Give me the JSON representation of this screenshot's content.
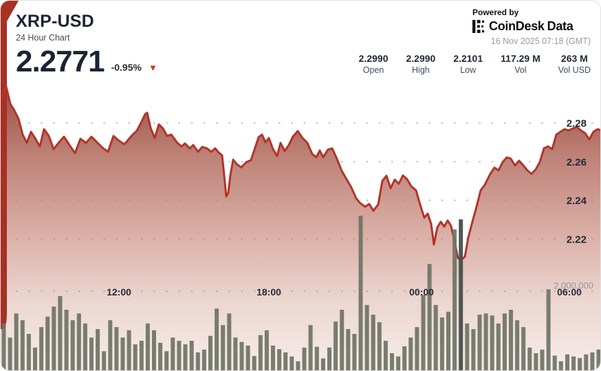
{
  "header": {
    "symbol": "XRP-USD",
    "subtitle": "24 Hour Chart",
    "price": "2.2771",
    "change_pct": "-0.95%",
    "down_arrow": "▼",
    "powered_by": "Powered by",
    "brand_1": "CoinDesk",
    "brand_2": "Data",
    "timestamp": "16 Nov 2025 07:18 (GMT)"
  },
  "stats": [
    {
      "value": "2.2990",
      "label": "Open"
    },
    {
      "value": "2.2990",
      "label": "High"
    },
    {
      "value": "2.2101",
      "label": "Low"
    },
    {
      "value": "117.29 M",
      "label": "Vol"
    },
    {
      "value": "263 M",
      "label": "Vol USD"
    }
  ],
  "chart_data": {
    "type": "area",
    "title": "XRP-USD 24 Hour Chart",
    "x_ticks": [
      "12:00",
      "18:00",
      "00:00",
      "06:00"
    ],
    "y_ticks": [
      "2.28",
      "2.26",
      "2.24",
      "2.22"
    ],
    "y_tick_prices": [
      2.28,
      2.26,
      2.24,
      2.22
    ],
    "volume_axis_label": "2,000,000",
    "volume_axis_value_millions": 2.0,
    "open": 2.299,
    "high": 2.299,
    "low": 2.2101,
    "last": 2.2771,
    "x_unit": "pixel position across 24h window (0-874)",
    "price_series": [
      [
        0,
        2.2914
      ],
      [
        8,
        2.2988
      ],
      [
        14,
        2.2899
      ],
      [
        20,
        2.2864
      ],
      [
        26,
        2.2821
      ],
      [
        32,
        2.274
      ],
      [
        38,
        2.2697
      ],
      [
        44,
        2.2754
      ],
      [
        50,
        2.2722
      ],
      [
        57,
        2.2679
      ],
      [
        63,
        2.2768
      ],
      [
        70,
        2.2733
      ],
      [
        77,
        2.2665
      ],
      [
        85,
        2.2701
      ],
      [
        92,
        2.2729
      ],
      [
        100,
        2.2686
      ],
      [
        108,
        2.2644
      ],
      [
        116,
        2.2718
      ],
      [
        124,
        2.2697
      ],
      [
        132,
        2.2729
      ],
      [
        140,
        2.2701
      ],
      [
        148,
        2.2672
      ],
      [
        156,
        2.2651
      ],
      [
        164,
        2.2733
      ],
      [
        172,
        2.2708
      ],
      [
        180,
        2.269
      ],
      [
        186,
        2.2715
      ],
      [
        192,
        2.274
      ],
      [
        198,
        2.276
      ],
      [
        204,
        2.28
      ],
      [
        210,
        2.2845
      ],
      [
        213,
        2.2853
      ],
      [
        218,
        2.2775
      ],
      [
        224,
        2.2722
      ],
      [
        230,
        2.2793
      ],
      [
        236,
        2.2772
      ],
      [
        242,
        2.2733
      ],
      [
        248,
        2.274
      ],
      [
        257,
        2.2697
      ],
      [
        263,
        2.2679
      ],
      [
        268,
        2.2694
      ],
      [
        275,
        2.2669
      ],
      [
        280,
        2.2686
      ],
      [
        287,
        2.2651
      ],
      [
        293,
        2.2676
      ],
      [
        300,
        2.2669
      ],
      [
        306,
        2.2651
      ],
      [
        312,
        2.2669
      ],
      [
        317,
        2.2647
      ],
      [
        322,
        2.2633
      ],
      [
        325,
        2.253
      ],
      [
        328,
        2.242
      ],
      [
        331,
        2.244
      ],
      [
        334,
        2.253
      ],
      [
        338,
        2.261
      ],
      [
        344,
        2.2585
      ],
      [
        350,
        2.257
      ],
      [
        357,
        2.2597
      ],
      [
        364,
        2.2608
      ],
      [
        370,
        2.2672
      ],
      [
        375,
        2.2726
      ],
      [
        380,
        2.274
      ],
      [
        385,
        2.27
      ],
      [
        390,
        2.2722
      ],
      [
        396,
        2.2665
      ],
      [
        402,
        2.263
      ],
      [
        407,
        2.2697
      ],
      [
        413,
        2.2655
      ],
      [
        419,
        2.2686
      ],
      [
        425,
        2.273
      ],
      [
        432,
        2.2758
      ],
      [
        439,
        2.2722
      ],
      [
        446,
        2.2697
      ],
      [
        453,
        2.264
      ],
      [
        459,
        2.2623
      ],
      [
        464,
        2.2658
      ],
      [
        469,
        2.2623
      ],
      [
        476,
        2.2662
      ],
      [
        482,
        2.2669
      ],
      [
        489,
        2.2615
      ],
      [
        496,
        2.2552
      ],
      [
        503,
        2.2509
      ],
      [
        510,
        2.2466
      ],
      [
        517,
        2.241
      ],
      [
        523,
        2.2385
      ],
      [
        530,
        2.2367
      ],
      [
        536,
        2.2381
      ],
      [
        542,
        2.2346
      ],
      [
        549,
        2.2379
      ],
      [
        555,
        2.25
      ],
      [
        561,
        2.2527
      ],
      [
        567,
        2.2463
      ],
      [
        573,
        2.2507
      ],
      [
        579,
        2.2486
      ],
      [
        585,
        2.2529
      ],
      [
        591,
        2.2509
      ],
      [
        597,
        2.2473
      ],
      [
        604,
        2.2452
      ],
      [
        610,
        2.2378
      ],
      [
        616,
        2.231
      ],
      [
        621,
        2.2331
      ],
      [
        626,
        2.2278
      ],
      [
        630,
        2.2172
      ],
      [
        635,
        2.226
      ],
      [
        640,
        2.2289
      ],
      [
        645,
        2.2264
      ],
      [
        650,
        2.2296
      ],
      [
        655,
        2.2267
      ],
      [
        660,
        2.2189
      ],
      [
        665,
        2.2101
      ],
      [
        671,
        2.2097
      ],
      [
        675,
        2.2108
      ],
      [
        680,
        2.2208
      ],
      [
        686,
        2.2289
      ],
      [
        692,
        2.2367
      ],
      [
        698,
        2.2452
      ],
      [
        704,
        2.248
      ],
      [
        712,
        2.2537
      ],
      [
        718,
        2.2569
      ],
      [
        724,
        2.2555
      ],
      [
        730,
        2.2598
      ],
      [
        736,
        2.2622
      ],
      [
        742,
        2.2615
      ],
      [
        748,
        2.258
      ],
      [
        754,
        2.2605
      ],
      [
        760,
        2.258
      ],
      [
        766,
        2.2555
      ],
      [
        772,
        2.2537
      ],
      [
        778,
        2.2559
      ],
      [
        784,
        2.2598
      ],
      [
        790,
        2.2669
      ],
      [
        796,
        2.2679
      ],
      [
        802,
        2.2665
      ],
      [
        808,
        2.274
      ],
      [
        814,
        2.2754
      ],
      [
        820,
        2.2768
      ],
      [
        826,
        2.2761
      ],
      [
        832,
        2.2772
      ],
      [
        838,
        2.2779
      ],
      [
        844,
        2.2761
      ],
      [
        850,
        2.2747
      ],
      [
        856,
        2.2715
      ],
      [
        862,
        2.2754
      ],
      [
        868,
        2.2768
      ],
      [
        874,
        2.2761
      ]
    ],
    "volume_series_millions": [
      1.2,
      0.85,
      1.45,
      1.28,
      0.94,
      0.6,
      1.11,
      1.37,
      1.62,
      1.88,
      1.54,
      1.28,
      1.45,
      1.2,
      0.85,
      1.06,
      0.51,
      1.28,
      1.11,
      0.85,
      1.03,
      0.68,
      0.77,
      1.2,
      1.03,
      0.72,
      0.51,
      0.85,
      0.77,
      0.68,
      0.77,
      0.48,
      0.55,
      0.89,
      1.57,
      1.16,
      1.45,
      0.85,
      0.74,
      0.65,
      0.39,
      0.91,
      1.03,
      0.65,
      0.56,
      0.48,
      0.38,
      0.26,
      0.6,
      1.16,
      0.62,
      0.33,
      0.6,
      1.25,
      1.54,
      1.06,
      0.94,
      3.88,
      1.66,
      1.42,
      1.23,
      0.77,
      0.46,
      0.38,
      0.63,
      0.85,
      1.11,
      1.91,
      2.68,
      1.66,
      1.35,
      1.49,
      3.54,
      3.79,
      1.2,
      1.06,
      1.42,
      1.45,
      1.4,
      1.2,
      1.45,
      1.54,
      1.28,
      1.11,
      0.6,
      0.46,
      0.55,
      2.05,
      0.4,
      0.26,
      0.43,
      0.38,
      0.34,
      0.43,
      0.48,
      0.55
    ],
    "dark_volume_bar_index": 73,
    "legend": "none",
    "grid": "dotted horizontal rows",
    "colors": {
      "line": "#b23429",
      "area_top": "#9a4a3f",
      "area_bottom": "#f7efec",
      "bar": "#6f7467",
      "bar_dark": "#414c46",
      "accent_red": "#c23a2c",
      "text_dark": "#1b2433"
    }
  }
}
